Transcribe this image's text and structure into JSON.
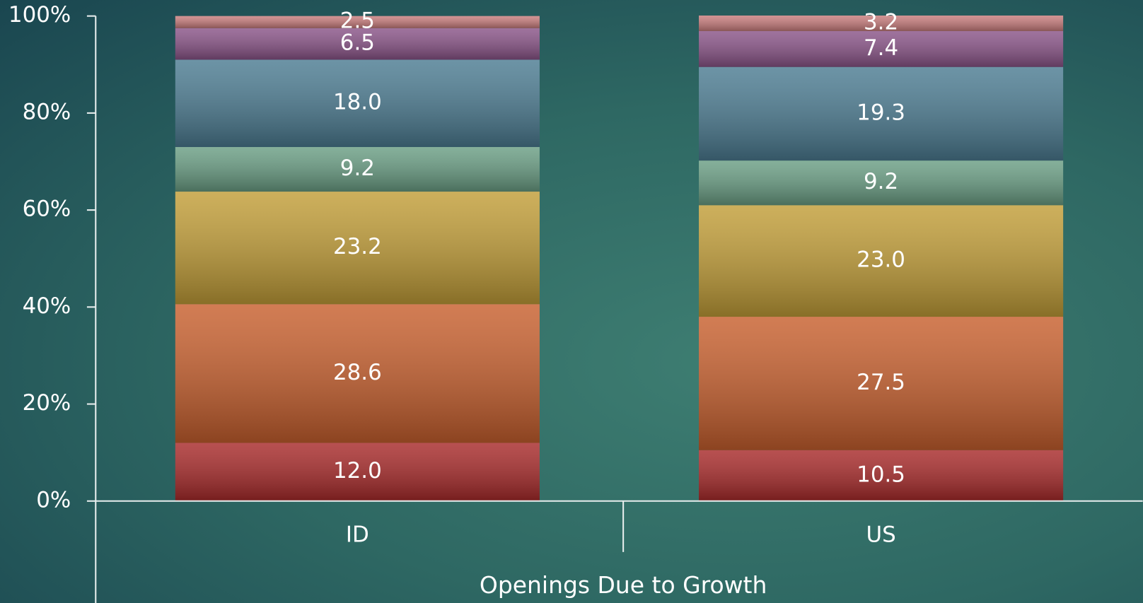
{
  "chart_data": {
    "type": "stacked_bar",
    "categories": [
      "ID",
      "US"
    ],
    "x_label": "Openings Due to Growth",
    "ylim": [
      0,
      100
    ],
    "yticks": [
      {
        "value": 0,
        "label": "0%"
      },
      {
        "value": 20,
        "label": "20%"
      },
      {
        "value": 40,
        "label": "40%"
      },
      {
        "value": 60,
        "label": "60%"
      },
      {
        "value": 80,
        "label": "80%"
      },
      {
        "value": 100,
        "label": "100%"
      }
    ],
    "series": [
      {
        "color": "#a82a2a",
        "values": [
          12.0,
          10.5
        ],
        "value_labels": [
          "12.0",
          "10.5"
        ]
      },
      {
        "color": "#c8602e",
        "values": [
          28.6,
          27.5
        ],
        "value_labels": [
          "28.6",
          "27.5"
        ]
      },
      {
        "color": "#c29e38",
        "values": [
          23.2,
          23.0
        ],
        "value_labels": [
          "23.2",
          "23.0"
        ]
      },
      {
        "color": "#6a9e84",
        "values": [
          9.2,
          9.2
        ],
        "value_labels": [
          "9.2",
          "9.2"
        ]
      },
      {
        "color": "#4c7c92",
        "values": [
          18.0,
          19.3
        ],
        "value_labels": [
          "18.0",
          "19.3"
        ]
      },
      {
        "color": "#8a5488",
        "values": [
          6.5,
          7.4
        ],
        "value_labels": [
          "6.5",
          "7.4"
        ]
      },
      {
        "color": "#c87c7c",
        "values": [
          2.5,
          3.2
        ],
        "value_labels": [
          "2.5",
          "3.2"
        ]
      }
    ]
  }
}
